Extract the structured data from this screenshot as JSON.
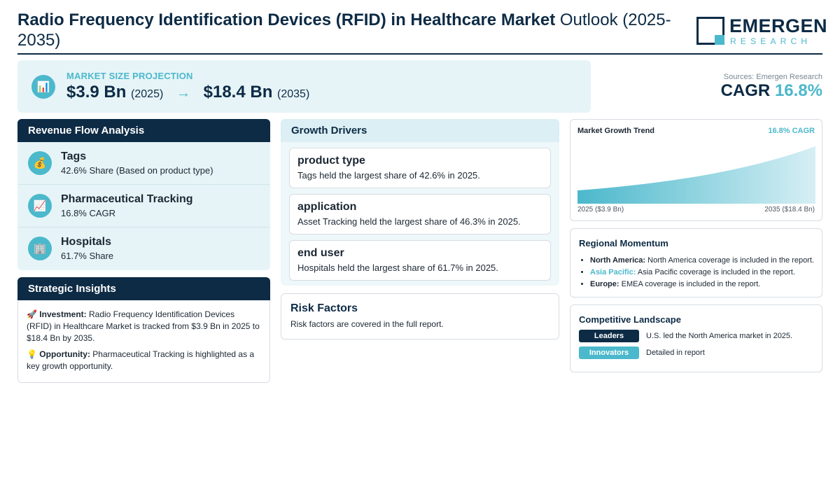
{
  "header": {
    "title_bold": "Radio Frequency Identification Devices (RFID) in Healthcare Market",
    "title_rest": " Outlook (2025-2035)",
    "logo_word": "EMERGEN",
    "logo_sub": "RESEARCH"
  },
  "projection": {
    "icon": "bar-chart-icon",
    "label": "MARKET SIZE PROJECTION",
    "start_value": "$3.9 Bn",
    "start_year": "(2025)",
    "arrow": "→",
    "end_value": "$18.4 Bn",
    "end_year": "(2035)"
  },
  "summary": {
    "sources": "Sources: Emergen Research",
    "cagr_label": "CAGR",
    "cagr_value": "16.8%"
  },
  "revenue": {
    "title": "Revenue Flow Analysis",
    "items": [
      {
        "icon": "money-bag-icon",
        "glyph": "💰",
        "name": "Tags",
        "sub": "42.6% Share (Based on product type)"
      },
      {
        "icon": "trend-chart-icon",
        "glyph": "📈",
        "name": "Pharmaceutical Tracking",
        "sub": "16.8% CAGR"
      },
      {
        "icon": "hospital-icon",
        "glyph": "🏢",
        "name": "Hospitals",
        "sub": "61.7% Share"
      }
    ]
  },
  "insights": {
    "title": "Strategic Insights",
    "investment_icon": "🚀",
    "investment_label": "Investment:",
    "investment_text": " Radio Frequency Identification Devices (RFID) in Healthcare Market is tracked from $3.9 Bn in 2025 to $18.4 Bn by 2035.",
    "opportunity_icon": "💡",
    "opportunity_label": "Opportunity:",
    "opportunity_text": " Pharmaceutical Tracking is highlighted as a key growth opportunity."
  },
  "drivers": {
    "title": "Growth Drivers",
    "items": [
      {
        "name": "product type",
        "desc": "Tags held the largest share of 42.6% in 2025."
      },
      {
        "name": "application",
        "desc": "Asset Tracking held the largest share of 46.3% in 2025."
      },
      {
        "name": "end user",
        "desc": "Hospitals held the largest share of 61.7% in 2025."
      }
    ]
  },
  "risk": {
    "title": "Risk Factors",
    "desc": "Risk factors are covered in the full report."
  },
  "trend": {
    "title": "Market Growth Trend",
    "cagr": "16.8% CAGR",
    "start_label": "2025 ($3.9 Bn)",
    "end_label": "2035 ($18.4 Bn)"
  },
  "chart_data": {
    "type": "area",
    "title": "Market Growth Trend",
    "x": [
      2025,
      2035
    ],
    "values": [
      3.9,
      18.4
    ],
    "unit": "$ Bn",
    "grid": false
  },
  "regional": {
    "title": "Regional Momentum",
    "items": [
      {
        "region": "North America:",
        "text": " North America coverage is included in the report."
      },
      {
        "region": "Asia Pacific:",
        "text": " Asia Pacific coverage is included in the report."
      },
      {
        "region": "Europe:",
        "text": " EMEA coverage is included in the report."
      }
    ]
  },
  "competitive": {
    "title": "Competitive Landscape",
    "leaders_label": "Leaders",
    "leaders_text": "U.S. led the North America market in 2025.",
    "innovators_label": "Innovators",
    "innovators_text": "Detailed in report"
  },
  "colors": {
    "navy": "#0d2b45",
    "teal": "#4bb8cc",
    "light_bg": "#e6f4f7"
  }
}
